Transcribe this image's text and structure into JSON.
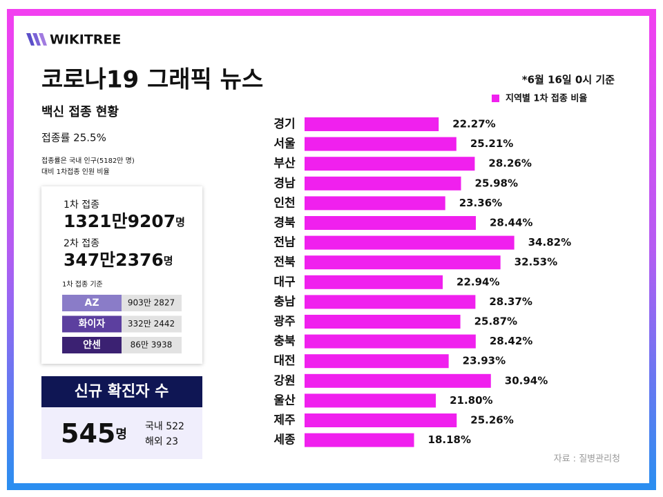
{
  "logo": "WIKITREE",
  "header": {
    "title": "코로나19 그래픽 뉴스",
    "subtitle": "백신 접종 현황"
  },
  "rate": {
    "text": "접종률 25.5%",
    "note": [
      "접종률은 국내 인구(5182만 명)",
      "대비 1차접종 인원 비율"
    ]
  },
  "doses": [
    {
      "label": "1차 접종",
      "count": "1321만9207",
      "unit": "명"
    },
    {
      "label": "2차 접종",
      "count": "347만2376",
      "unit": "명"
    }
  ],
  "vaccine_table": {
    "caption": "1차 접종 기준",
    "rows": [
      [
        "AZ",
        "903만 2827"
      ],
      [
        "화이자",
        "332만 2442"
      ],
      [
        "얀센",
        "86만 3938"
      ]
    ]
  },
  "new_cases": {
    "title": "신규 확진자 수",
    "count": "545",
    "unit": "명",
    "domestic": "국내 522",
    "overseas": "해외 23"
  },
  "source": "자료 : 질병관리청",
  "chart_data": {
    "type": "bar",
    "orientation": "horizontal",
    "note": "*6월 16일 0시 기준",
    "categories": [
      "경기",
      "서울",
      "부산",
      "경남",
      "인천",
      "경북",
      "전남",
      "전북",
      "대구",
      "충남",
      "광주",
      "충북",
      "대전",
      "강원",
      "울산",
      "제주",
      "세종"
    ],
    "series": [
      {
        "name": "지역별 1차 접종 비율",
        "color": "#f020ee",
        "values": [
          22.27,
          25.21,
          28.26,
          25.98,
          23.36,
          28.44,
          34.82,
          32.53,
          22.94,
          28.37,
          25.87,
          28.42,
          23.93,
          30.94,
          21.8,
          25.26,
          18.18
        ],
        "value_labels": [
          "22.27%",
          "25.21%",
          "28.26%",
          "25.98%",
          "23.36%",
          "28.44%",
          "34.82%",
          "32.53%",
          "22.94%",
          "28.37%",
          "25.87%",
          "28.42%",
          "23.93%",
          "30.94%",
          "21.80%",
          "25.26%",
          "18.18%"
        ]
      }
    ]
  }
}
